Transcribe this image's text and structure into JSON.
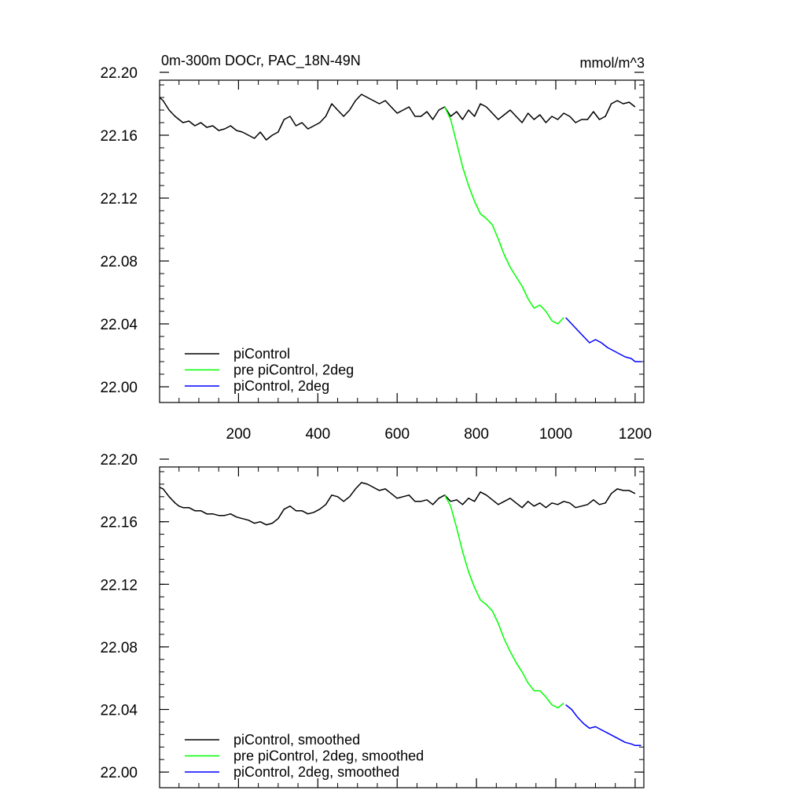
{
  "chart_data": [
    {
      "type": "line",
      "title": "0m-300m DOCr, PAC_18N-49N",
      "units": "mmol/m^3",
      "xlim": [
        1,
        1222
      ],
      "ylim": [
        21.99,
        22.195
      ],
      "x_ticks": [
        200,
        400,
        600,
        800,
        1000,
        1200
      ],
      "y_ticks": [
        22.0,
        22.04,
        22.08,
        22.12,
        22.16,
        22.2
      ],
      "x_tick_labels": [
        "200",
        "400",
        "600",
        "800",
        "1000",
        "1200"
      ],
      "y_tick_labels": [
        "22.00",
        "22.04",
        "22.08",
        "22.12",
        "22.16",
        "22.20"
      ],
      "legend_position": "bottom-left",
      "series": [
        {
          "name": "piControl",
          "color": "#000000",
          "x": [
            1,
            10,
            25,
            40,
            50,
            60,
            75,
            90,
            105,
            120,
            135,
            150,
            165,
            180,
            195,
            210,
            225,
            240,
            255,
            270,
            285,
            300,
            315,
            330,
            345,
            360,
            375,
            390,
            405,
            420,
            435,
            450,
            465,
            480,
            495,
            510,
            525,
            540,
            555,
            570,
            585,
            600,
            615,
            630,
            645,
            660,
            675,
            690,
            705,
            720,
            735,
            750,
            765,
            780,
            795,
            810,
            825,
            840,
            855,
            870,
            885,
            900,
            915,
            930,
            945,
            960,
            975,
            990,
            1005,
            1020,
            1035,
            1050,
            1065,
            1080,
            1095,
            1110,
            1125,
            1140,
            1155,
            1170,
            1185,
            1200
          ],
          "y": [
            22.184,
            22.182,
            22.176,
            22.172,
            22.17,
            22.168,
            22.169,
            22.166,
            22.168,
            22.165,
            22.166,
            22.163,
            22.164,
            22.166,
            22.163,
            22.162,
            22.16,
            22.158,
            22.162,
            22.157,
            22.16,
            22.162,
            22.17,
            22.172,
            22.166,
            22.168,
            22.164,
            22.166,
            22.168,
            22.172,
            22.18,
            22.176,
            22.172,
            22.176,
            22.182,
            22.186,
            22.184,
            22.182,
            22.18,
            22.182,
            22.178,
            22.174,
            22.176,
            22.178,
            22.172,
            22.172,
            22.175,
            22.17,
            22.176,
            22.178,
            22.172,
            22.175,
            22.17,
            22.176,
            22.172,
            22.18,
            22.178,
            22.174,
            22.17,
            22.173,
            22.176,
            22.172,
            22.168,
            22.174,
            22.17,
            22.173,
            22.168,
            22.172,
            22.17,
            22.174,
            22.172,
            22.168,
            22.17,
            22.17,
            22.175,
            22.17,
            22.172,
            22.18,
            22.182,
            22.18,
            22.181,
            22.178
          ]
        },
        {
          "name": "pre piControl, 2deg",
          "color": "#00ff00",
          "x": [
            720,
            735,
            750,
            765,
            780,
            795,
            810,
            825,
            840,
            855,
            870,
            885,
            900,
            915,
            930,
            945,
            960,
            975,
            990,
            1005,
            1020
          ],
          "y": [
            22.178,
            22.17,
            22.155,
            22.14,
            22.128,
            22.118,
            22.11,
            22.107,
            22.103,
            22.094,
            22.084,
            22.076,
            22.07,
            22.064,
            22.056,
            22.05,
            22.052,
            22.048,
            22.042,
            22.04,
            22.044
          ]
        },
        {
          "name": "piControl, 2deg",
          "color": "#0000ff",
          "x": [
            1025,
            1040,
            1055,
            1070,
            1085,
            1100,
            1115,
            1130,
            1145,
            1160,
            1175,
            1190,
            1200,
            1215
          ],
          "y": [
            22.044,
            22.04,
            22.036,
            22.032,
            22.028,
            22.03,
            22.028,
            22.025,
            22.023,
            22.021,
            22.019,
            22.018,
            22.016,
            22.016
          ]
        }
      ]
    },
    {
      "type": "line",
      "xlim": [
        1,
        1222
      ],
      "ylim": [
        21.99,
        22.195
      ],
      "x_ticks": [
        200,
        400,
        600,
        800,
        1000,
        1200
      ],
      "y_ticks": [
        22.0,
        22.04,
        22.08,
        22.12,
        22.16,
        22.2
      ],
      "y_tick_labels": [
        "22.00",
        "22.04",
        "22.08",
        "22.12",
        "22.16",
        "22.20"
      ],
      "legend_position": "bottom-left",
      "series": [
        {
          "name": "piControl, smoothed",
          "color": "#000000",
          "x": [
            1,
            10,
            25,
            40,
            50,
            60,
            75,
            90,
            105,
            120,
            135,
            150,
            165,
            180,
            195,
            210,
            225,
            240,
            255,
            270,
            285,
            300,
            315,
            330,
            345,
            360,
            375,
            390,
            405,
            420,
            435,
            450,
            465,
            480,
            495,
            510,
            525,
            540,
            555,
            570,
            585,
            600,
            615,
            630,
            645,
            660,
            675,
            690,
            705,
            720,
            735,
            750,
            765,
            780,
            795,
            810,
            825,
            840,
            855,
            870,
            885,
            900,
            915,
            930,
            945,
            960,
            975,
            990,
            1005,
            1020,
            1035,
            1050,
            1065,
            1080,
            1095,
            1110,
            1125,
            1140,
            1155,
            1170,
            1185,
            1200
          ],
          "y": [
            22.182,
            22.181,
            22.176,
            22.172,
            22.17,
            22.169,
            22.169,
            22.167,
            22.167,
            22.165,
            22.165,
            22.164,
            22.164,
            22.165,
            22.163,
            22.162,
            22.161,
            22.159,
            22.16,
            22.158,
            22.159,
            22.162,
            22.168,
            22.17,
            22.167,
            22.167,
            22.165,
            22.166,
            22.168,
            22.171,
            22.177,
            22.176,
            22.173,
            22.176,
            22.181,
            22.185,
            22.184,
            22.182,
            22.18,
            22.181,
            22.178,
            22.175,
            22.176,
            22.177,
            22.173,
            22.173,
            22.174,
            22.171,
            22.175,
            22.177,
            22.173,
            22.174,
            22.171,
            22.175,
            22.173,
            22.179,
            22.177,
            22.174,
            22.171,
            22.173,
            22.175,
            22.172,
            22.169,
            22.173,
            22.17,
            22.172,
            22.169,
            22.172,
            22.171,
            22.173,
            22.172,
            22.169,
            22.17,
            22.171,
            22.174,
            22.171,
            22.172,
            22.178,
            22.181,
            22.18,
            22.18,
            22.178
          ]
        },
        {
          "name": "pre piControl, 2deg, smoothed",
          "color": "#00ff00",
          "x": [
            720,
            735,
            750,
            765,
            780,
            795,
            810,
            825,
            840,
            855,
            870,
            885,
            900,
            915,
            930,
            945,
            960,
            975,
            990,
            1005,
            1020
          ],
          "y": [
            22.177,
            22.17,
            22.156,
            22.141,
            22.128,
            22.118,
            22.11,
            22.107,
            22.103,
            22.095,
            22.085,
            22.077,
            22.07,
            22.064,
            22.057,
            22.052,
            22.052,
            22.048,
            22.043,
            22.041,
            22.044
          ]
        },
        {
          "name": "piControl, 2deg, smoothed",
          "color": "#0000ff",
          "x": [
            1025,
            1040,
            1055,
            1070,
            1085,
            1100,
            1115,
            1130,
            1145,
            1160,
            1175,
            1190,
            1200,
            1215
          ],
          "y": [
            22.043,
            22.04,
            22.035,
            22.031,
            22.028,
            22.029,
            22.027,
            22.025,
            22.023,
            22.021,
            22.019,
            22.018,
            22.017,
            22.017
          ]
        }
      ]
    }
  ]
}
